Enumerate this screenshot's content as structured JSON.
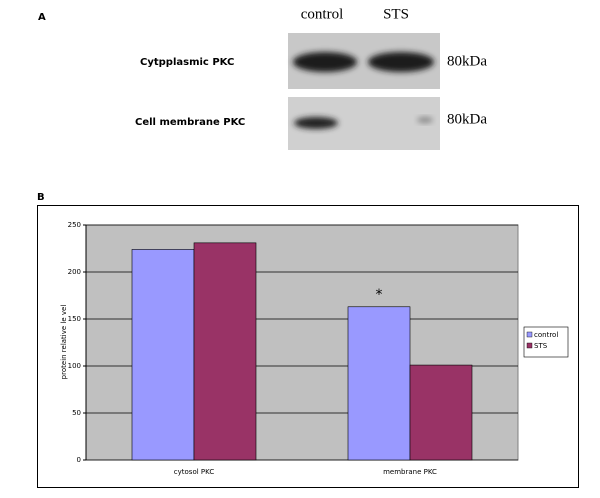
{
  "blot": {
    "panel_label": "A",
    "lanes": [
      "control",
      "STS"
    ],
    "rows": [
      {
        "label": "Cytpplasmic PKC",
        "size": "80kDa"
      },
      {
        "label": "Cell membrane PKC",
        "size": "80kDa"
      }
    ]
  },
  "chart_data": {
    "type": "bar",
    "panel_label": "B",
    "ylabel": "protein relative le vel",
    "categories": [
      "cytosol PKC",
      "membrane PKC"
    ],
    "series": [
      {
        "name": "control",
        "color": "#9999ff",
        "values": [
          224,
          163
        ]
      },
      {
        "name": "STS",
        "color": "#993366",
        "values": [
          231,
          101
        ]
      }
    ],
    "annotation": "*",
    "ylim": [
      0,
      250
    ],
    "yticks": [
      0,
      50,
      100,
      150,
      200,
      250
    ],
    "grid": true,
    "legend": "right"
  }
}
